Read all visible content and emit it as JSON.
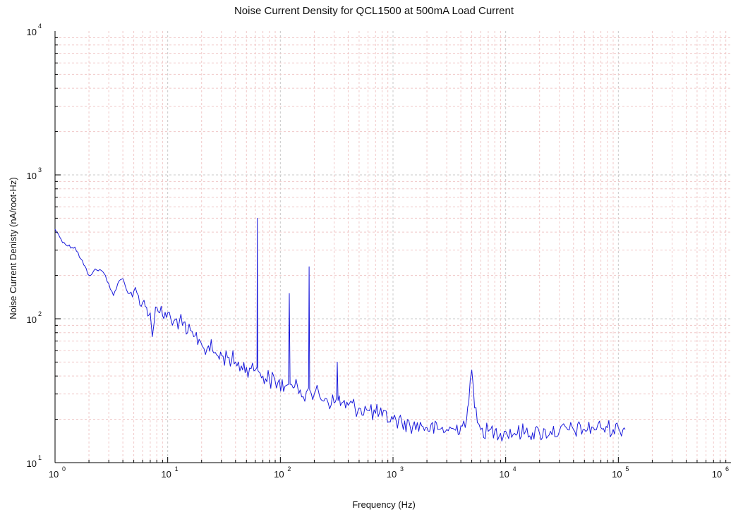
{
  "chart_data": {
    "type": "line",
    "title": "Noise Current Density for QCL1500 at 500mA Load Current",
    "xlabel": "Frequency (Hz)",
    "ylabel": "Noise Current Denisty (nA/root-Hz)",
    "xscale": "log",
    "yscale": "log",
    "xlim": [
      1,
      1000000
    ],
    "ylim": [
      10,
      10000
    ],
    "x_ticks": [
      {
        "base": "10",
        "exp": "0"
      },
      {
        "base": "10",
        "exp": "1"
      },
      {
        "base": "10",
        "exp": "2"
      },
      {
        "base": "10",
        "exp": "3"
      },
      {
        "base": "10",
        "exp": "4"
      },
      {
        "base": "10",
        "exp": "5"
      },
      {
        "base": "10",
        "exp": "6"
      }
    ],
    "y_ticks": [
      {
        "base": "10",
        "exp": "1"
      },
      {
        "base": "10",
        "exp": "2"
      },
      {
        "base": "10",
        "exp": "3"
      },
      {
        "base": "10",
        "exp": "4"
      }
    ],
    "grid": true,
    "legend": "none",
    "colors": {
      "line": "#1a1adb",
      "major_grid": "#c8c8c8",
      "minor_grid": "#f0c8c8",
      "axes": "#000000"
    },
    "series": [
      {
        "x": [
          1,
          1.1,
          1.2,
          1.3,
          1.5,
          1.7,
          2,
          2.2,
          2.5,
          2.8,
          3,
          3.3,
          3.6,
          4,
          4.3,
          4.6,
          5,
          5.5,
          6,
          6.5,
          7,
          7.3,
          7.6,
          8,
          8.5,
          9,
          10,
          11,
          12,
          13.5,
          15,
          17,
          19,
          21,
          23,
          25,
          28,
          31,
          35,
          40,
          45,
          50,
          55,
          60,
          62,
          62.5,
          63,
          64,
          66,
          70,
          80,
          95,
          110,
          118,
          120,
          122,
          130,
          150,
          170,
          178,
          180,
          182,
          200,
          250,
          300,
          315,
          320,
          325,
          350,
          400,
          500,
          600,
          700,
          800,
          1000,
          1200,
          1500,
          1800,
          2000,
          2500,
          3000,
          3500,
          4000,
          4500,
          4700,
          4850,
          5000,
          5150,
          5300,
          5600,
          6000,
          7000,
          8000,
          9000,
          10000,
          12000,
          15000,
          20000,
          25000,
          30000,
          40000,
          50000,
          60000,
          70000,
          80000,
          90000,
          100000,
          110000,
          115000
        ],
        "y": [
          420,
          370,
          340,
          320,
          315,
          260,
          200,
          215,
          220,
          200,
          175,
          145,
          175,
          190,
          160,
          150,
          155,
          145,
          130,
          120,
          110,
          75,
          95,
          120,
          110,
          105,
          110,
          90,
          100,
          90,
          80,
          75,
          72,
          62,
          65,
          60,
          55,
          55,
          54,
          50,
          47,
          46,
          45,
          44,
          46,
          500,
          44,
          43,
          42,
          40,
          38,
          36,
          34,
          35,
          150,
          35,
          33,
          32,
          31,
          33,
          230,
          32,
          30,
          28,
          26,
          28,
          50,
          27,
          26,
          25,
          24,
          23,
          22,
          21,
          20,
          19,
          18,
          18,
          17.5,
          17,
          17,
          17,
          18,
          20,
          26,
          38,
          44,
          34,
          24,
          19,
          17,
          16.5,
          16.5,
          16,
          16.5,
          16,
          16.5,
          16,
          16.5,
          16.5,
          17,
          17,
          17.5,
          17.5,
          17.5,
          17,
          17.5,
          17,
          17
        ]
      }
    ]
  }
}
